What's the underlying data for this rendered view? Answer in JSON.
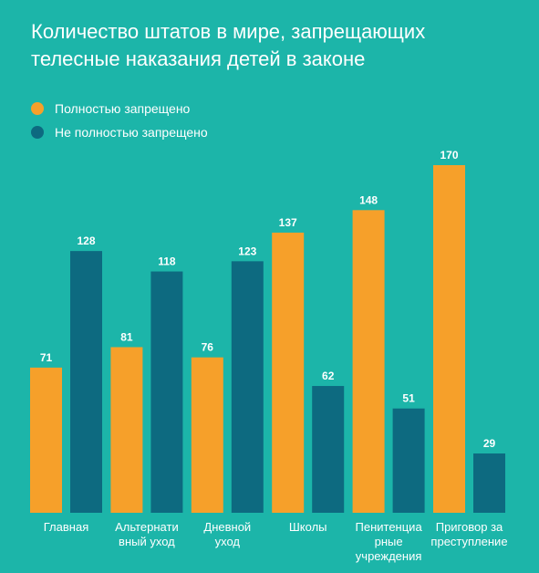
{
  "title": {
    "line1": "Количество штатов в мире, запрещающих",
    "line2": "телесные наказания детей в законе"
  },
  "colors": {
    "background": "#1cb5a9",
    "full": "#f6a02a",
    "partial": "#0d6a80"
  },
  "legend": [
    {
      "label": "Полностью запрещено",
      "color": "#f6a02a"
    },
    {
      "label": "Не полностью запрещено",
      "color": "#0d6a80"
    }
  ],
  "chart_data": {
    "type": "bar",
    "categories": [
      [
        "Главная"
      ],
      [
        "Альтернати",
        "вный уход"
      ],
      [
        "Дневной",
        "уход"
      ],
      [
        "Школы"
      ],
      [
        "Пенитенциа",
        "рные",
        "учреждения"
      ],
      [
        "Приговор за",
        "преступление"
      ]
    ],
    "series": [
      {
        "name": "Полностью запрещено",
        "values": [
          71,
          81,
          76,
          137,
          148,
          170
        ]
      },
      {
        "name": "Не полностью запрещено",
        "values": [
          128,
          118,
          123,
          62,
          51,
          29
        ]
      }
    ],
    "ylim": [
      0,
      170
    ],
    "grid": false,
    "legend_position": "top-left"
  }
}
